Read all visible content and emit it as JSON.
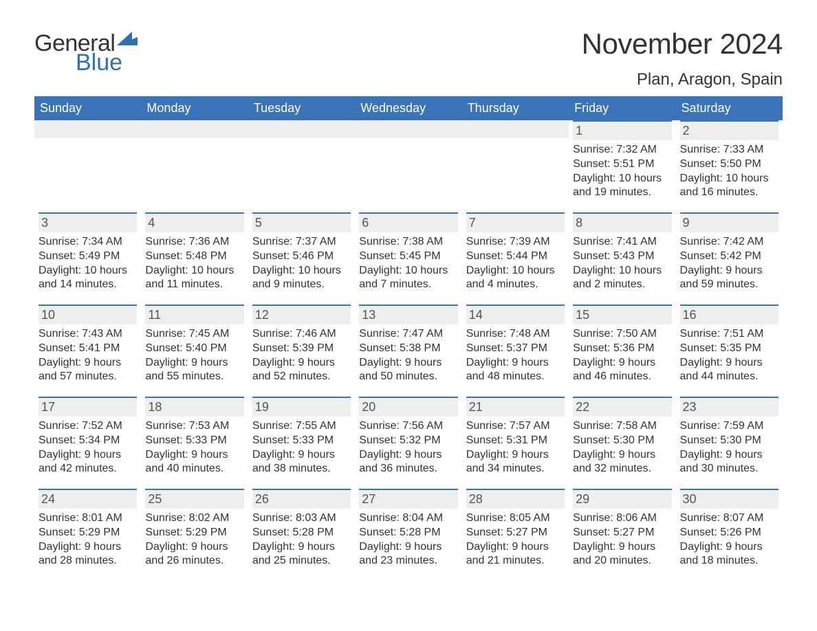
{
  "logo": {
    "text_general": "General",
    "text_blue": "Blue",
    "flag_color": "#2f6fb3"
  },
  "title": "November 2024",
  "location": "Plan, Aragon, Spain",
  "colors": {
    "header_bg": "#3b73b9",
    "header_text": "#ffffff",
    "daynum_bg": "#eeeeee",
    "daynum_border": "#3b73b9",
    "body_text": "#333333"
  },
  "day_headers": [
    "Sunday",
    "Monday",
    "Tuesday",
    "Wednesday",
    "Thursday",
    "Friday",
    "Saturday"
  ],
  "weeks": [
    [
      null,
      null,
      null,
      null,
      null,
      {
        "n": "1",
        "sr": "Sunrise: 7:32 AM",
        "ss": "Sunset: 5:51 PM",
        "dl1": "Daylight: 10 hours",
        "dl2": "and 19 minutes."
      },
      {
        "n": "2",
        "sr": "Sunrise: 7:33 AM",
        "ss": "Sunset: 5:50 PM",
        "dl1": "Daylight: 10 hours",
        "dl2": "and 16 minutes."
      }
    ],
    [
      {
        "n": "3",
        "sr": "Sunrise: 7:34 AM",
        "ss": "Sunset: 5:49 PM",
        "dl1": "Daylight: 10 hours",
        "dl2": "and 14 minutes."
      },
      {
        "n": "4",
        "sr": "Sunrise: 7:36 AM",
        "ss": "Sunset: 5:48 PM",
        "dl1": "Daylight: 10 hours",
        "dl2": "and 11 minutes."
      },
      {
        "n": "5",
        "sr": "Sunrise: 7:37 AM",
        "ss": "Sunset: 5:46 PM",
        "dl1": "Daylight: 10 hours",
        "dl2": "and 9 minutes."
      },
      {
        "n": "6",
        "sr": "Sunrise: 7:38 AM",
        "ss": "Sunset: 5:45 PM",
        "dl1": "Daylight: 10 hours",
        "dl2": "and 7 minutes."
      },
      {
        "n": "7",
        "sr": "Sunrise: 7:39 AM",
        "ss": "Sunset: 5:44 PM",
        "dl1": "Daylight: 10 hours",
        "dl2": "and 4 minutes."
      },
      {
        "n": "8",
        "sr": "Sunrise: 7:41 AM",
        "ss": "Sunset: 5:43 PM",
        "dl1": "Daylight: 10 hours",
        "dl2": "and 2 minutes."
      },
      {
        "n": "9",
        "sr": "Sunrise: 7:42 AM",
        "ss": "Sunset: 5:42 PM",
        "dl1": "Daylight: 9 hours",
        "dl2": "and 59 minutes."
      }
    ],
    [
      {
        "n": "10",
        "sr": "Sunrise: 7:43 AM",
        "ss": "Sunset: 5:41 PM",
        "dl1": "Daylight: 9 hours",
        "dl2": "and 57 minutes."
      },
      {
        "n": "11",
        "sr": "Sunrise: 7:45 AM",
        "ss": "Sunset: 5:40 PM",
        "dl1": "Daylight: 9 hours",
        "dl2": "and 55 minutes."
      },
      {
        "n": "12",
        "sr": "Sunrise: 7:46 AM",
        "ss": "Sunset: 5:39 PM",
        "dl1": "Daylight: 9 hours",
        "dl2": "and 52 minutes."
      },
      {
        "n": "13",
        "sr": "Sunrise: 7:47 AM",
        "ss": "Sunset: 5:38 PM",
        "dl1": "Daylight: 9 hours",
        "dl2": "and 50 minutes."
      },
      {
        "n": "14",
        "sr": "Sunrise: 7:48 AM",
        "ss": "Sunset: 5:37 PM",
        "dl1": "Daylight: 9 hours",
        "dl2": "and 48 minutes."
      },
      {
        "n": "15",
        "sr": "Sunrise: 7:50 AM",
        "ss": "Sunset: 5:36 PM",
        "dl1": "Daylight: 9 hours",
        "dl2": "and 46 minutes."
      },
      {
        "n": "16",
        "sr": "Sunrise: 7:51 AM",
        "ss": "Sunset: 5:35 PM",
        "dl1": "Daylight: 9 hours",
        "dl2": "and 44 minutes."
      }
    ],
    [
      {
        "n": "17",
        "sr": "Sunrise: 7:52 AM",
        "ss": "Sunset: 5:34 PM",
        "dl1": "Daylight: 9 hours",
        "dl2": "and 42 minutes."
      },
      {
        "n": "18",
        "sr": "Sunrise: 7:53 AM",
        "ss": "Sunset: 5:33 PM",
        "dl1": "Daylight: 9 hours",
        "dl2": "and 40 minutes."
      },
      {
        "n": "19",
        "sr": "Sunrise: 7:55 AM",
        "ss": "Sunset: 5:33 PM",
        "dl1": "Daylight: 9 hours",
        "dl2": "and 38 minutes."
      },
      {
        "n": "20",
        "sr": "Sunrise: 7:56 AM",
        "ss": "Sunset: 5:32 PM",
        "dl1": "Daylight: 9 hours",
        "dl2": "and 36 minutes."
      },
      {
        "n": "21",
        "sr": "Sunrise: 7:57 AM",
        "ss": "Sunset: 5:31 PM",
        "dl1": "Daylight: 9 hours",
        "dl2": "and 34 minutes."
      },
      {
        "n": "22",
        "sr": "Sunrise: 7:58 AM",
        "ss": "Sunset: 5:30 PM",
        "dl1": "Daylight: 9 hours",
        "dl2": "and 32 minutes."
      },
      {
        "n": "23",
        "sr": "Sunrise: 7:59 AM",
        "ss": "Sunset: 5:30 PM",
        "dl1": "Daylight: 9 hours",
        "dl2": "and 30 minutes."
      }
    ],
    [
      {
        "n": "24",
        "sr": "Sunrise: 8:01 AM",
        "ss": "Sunset: 5:29 PM",
        "dl1": "Daylight: 9 hours",
        "dl2": "and 28 minutes."
      },
      {
        "n": "25",
        "sr": "Sunrise: 8:02 AM",
        "ss": "Sunset: 5:29 PM",
        "dl1": "Daylight: 9 hours",
        "dl2": "and 26 minutes."
      },
      {
        "n": "26",
        "sr": "Sunrise: 8:03 AM",
        "ss": "Sunset: 5:28 PM",
        "dl1": "Daylight: 9 hours",
        "dl2": "and 25 minutes."
      },
      {
        "n": "27",
        "sr": "Sunrise: 8:04 AM",
        "ss": "Sunset: 5:28 PM",
        "dl1": "Daylight: 9 hours",
        "dl2": "and 23 minutes."
      },
      {
        "n": "28",
        "sr": "Sunrise: 8:05 AM",
        "ss": "Sunset: 5:27 PM",
        "dl1": "Daylight: 9 hours",
        "dl2": "and 21 minutes."
      },
      {
        "n": "29",
        "sr": "Sunrise: 8:06 AM",
        "ss": "Sunset: 5:27 PM",
        "dl1": "Daylight: 9 hours",
        "dl2": "and 20 minutes."
      },
      {
        "n": "30",
        "sr": "Sunrise: 8:07 AM",
        "ss": "Sunset: 5:26 PM",
        "dl1": "Daylight: 9 hours",
        "dl2": "and 18 minutes."
      }
    ]
  ]
}
